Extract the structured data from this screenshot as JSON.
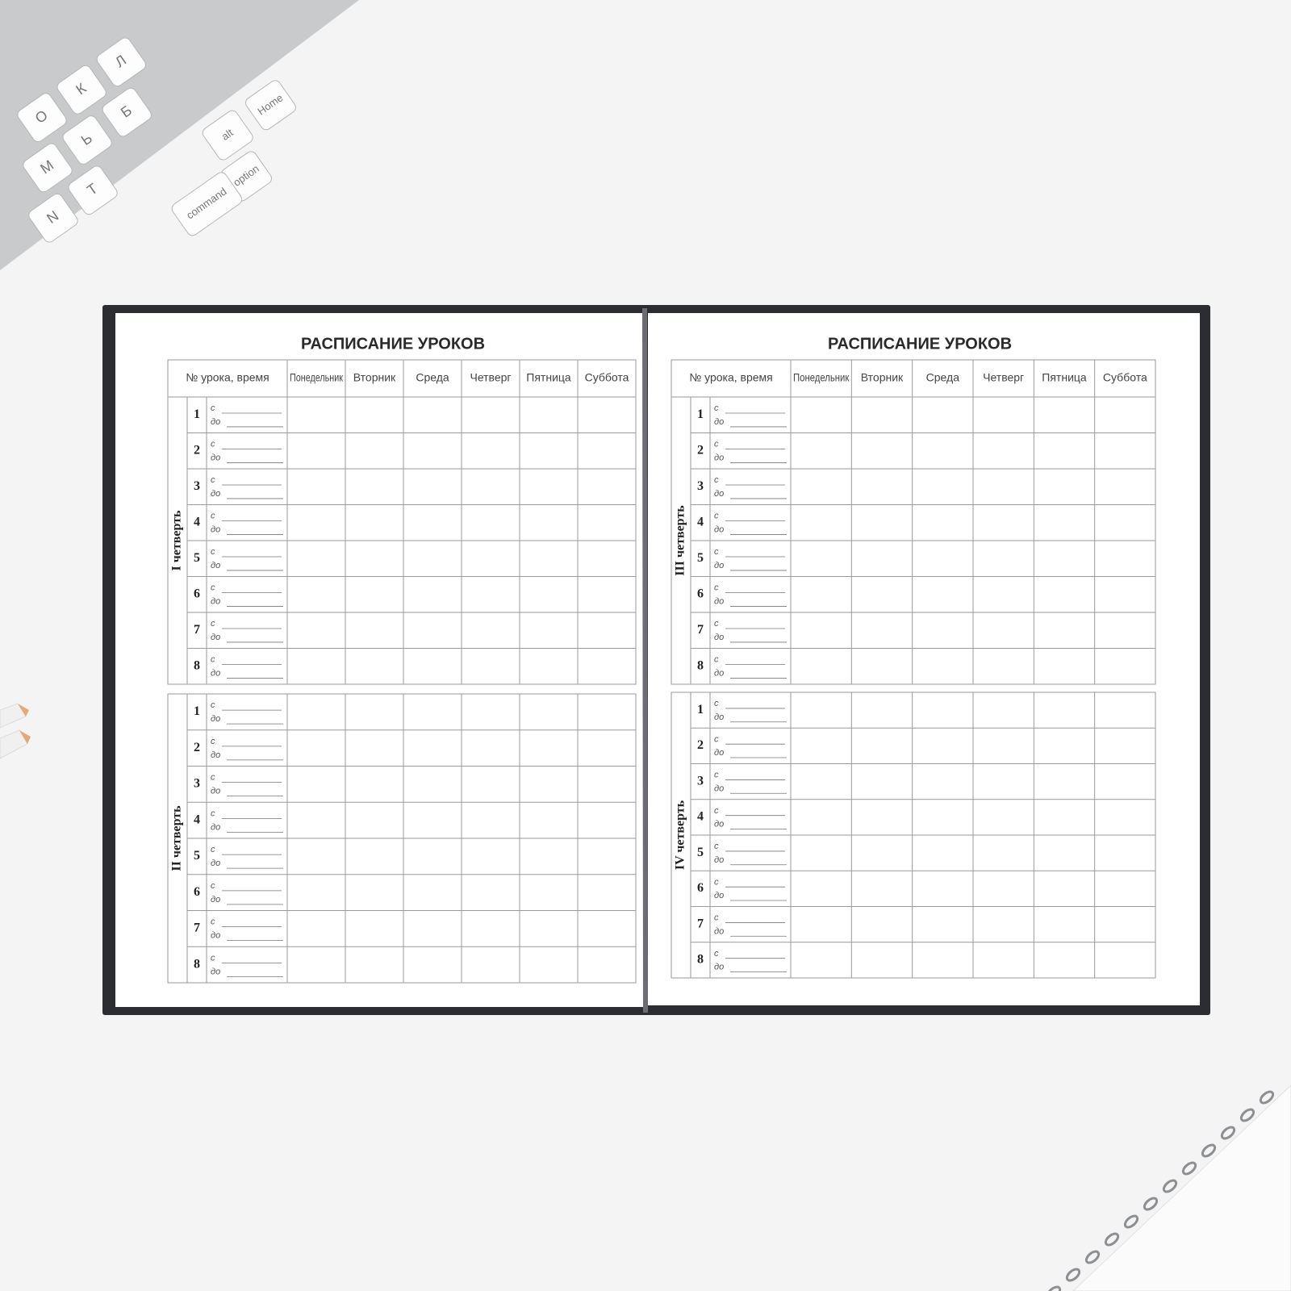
{
  "keyboard": {
    "keys": [
      "О",
      "К",
      "Л",
      "М",
      "Ь",
      "Б",
      "N",
      "Т",
      "alt",
      "option",
      "command",
      "Home"
    ]
  },
  "lesson_numbers": [
    "1",
    "2",
    "3",
    "4",
    "5",
    "6",
    "7",
    "8"
  ],
  "time_from": "с",
  "time_to": "до",
  "pages": [
    {
      "title": "РАСПИСАНИЕ УРОКОВ",
      "columns_header": "№ урока, время",
      "days": [
        "Понедельник",
        "Вторник",
        "Среда",
        "Четверг",
        "Пятница",
        "Суббота"
      ],
      "quarters": [
        "I четверть",
        "II четверть"
      ]
    },
    {
      "title": "РАСПИСАНИЕ УРОКОВ",
      "columns_header": "№ урока, время",
      "days": [
        "Понедельник",
        "Вторник",
        "Среда",
        "Четверг",
        "Пятница",
        "Суббота"
      ],
      "quarters": [
        "III четверть",
        "IV четверть"
      ]
    }
  ]
}
